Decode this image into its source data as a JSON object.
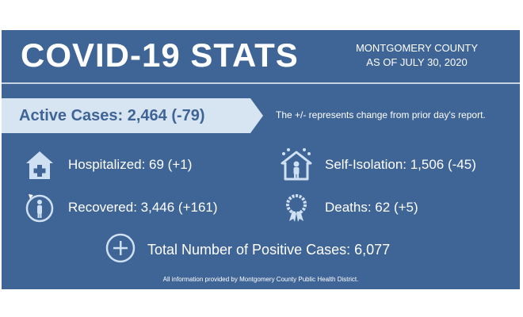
{
  "header": {
    "title": "COVID-19 STATS",
    "county_line1": "MONTGOMERY COUNTY",
    "county_line2": "AS OF JULY 30, 2020"
  },
  "banner": {
    "active_cases": "Active Cases: 2,464 (-79)",
    "note": "The +/- represents change from prior day's report."
  },
  "stats": {
    "hospitalized": {
      "label": "Hospitalized: 69 (+1)",
      "icon": "hospital-icon"
    },
    "self_isolation": {
      "label": "Self-Isolation: 1,506 (-45)",
      "icon": "house-person-icon"
    },
    "recovered": {
      "label": "Recovered: 3,446 (+161)",
      "icon": "recovered-person-icon"
    },
    "deaths": {
      "label": "Deaths: 62 (+5)",
      "icon": "memorial-wreath-icon"
    },
    "total": {
      "label": "Total Number of Positive Cases: 6,077",
      "icon": "plus-circle-icon"
    }
  },
  "footer": {
    "text": "All information provided by Montgomery County Public Health District."
  },
  "colors": {
    "background": "#3f6496",
    "banner": "#d7e4f2",
    "text": "#ffffff"
  }
}
